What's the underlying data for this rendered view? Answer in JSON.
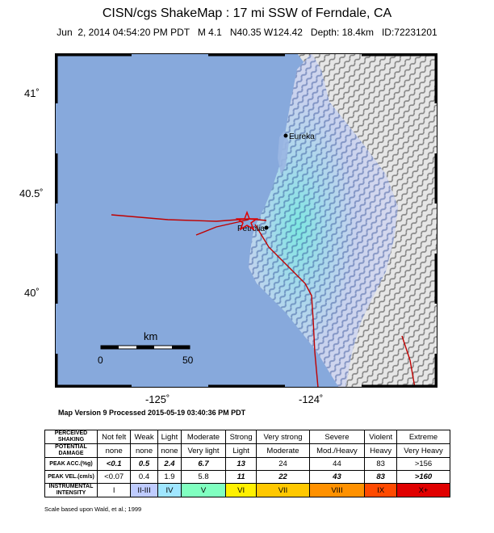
{
  "header": {
    "title": "CISN/cgs ShakeMap : 17 mi SSW of Ferndale, CA",
    "subtitle": "Jun  2, 2014 04:54:20 PM PDT   M 4.1   N40.35 W124.42   Depth: 18.4km   ID:72231201"
  },
  "map": {
    "lat_labels": [
      "41˚",
      "40.5˚",
      "40˚"
    ],
    "lon_labels": [
      "-125˚",
      "-124˚"
    ],
    "cities": [
      {
        "name": "Eureka"
      },
      {
        "name": "Petrolia"
      }
    ],
    "scale": {
      "unit": "km",
      "start": "0",
      "end": "50"
    },
    "colors": {
      "ocean": "#87a9dc",
      "epicenter": "#e00000",
      "faults": "#c00000"
    }
  },
  "version_text": "Map Version 9 Processed 2015-05-19 03:40:36 PM PDT",
  "legend": {
    "row_labels": {
      "shaking": "PERCEIVED SHAKING",
      "damage": "POTENTIAL DAMAGE",
      "acc": "PEAK ACC.(%g)",
      "vel": "PEAK VEL.(cm/s)",
      "intensity": "INSTRUMENTAL INTENSITY"
    },
    "shaking": [
      "Not felt",
      "Weak",
      "Light",
      "Moderate",
      "Strong",
      "Very strong",
      "Severe",
      "Violent",
      "Extreme"
    ],
    "damage": [
      "none",
      "none",
      "none",
      "Very light",
      "Light",
      "Moderate",
      "Mod./Heavy",
      "Heavy",
      "Very Heavy"
    ],
    "acc": [
      "<0.1",
      "0.5",
      "2.4",
      "6.7",
      "13",
      "24",
      "44",
      "83",
      ">156"
    ],
    "vel": [
      "<0.07",
      "0.4",
      "1.9",
      "5.8",
      "11",
      "22",
      "43",
      "83",
      ">160"
    ],
    "intensity": [
      "I",
      "II-III",
      "IV",
      "V",
      "VI",
      "VII",
      "VIII",
      "IX",
      "X+"
    ],
    "intensity_colors": [
      "#ffffff",
      "#bfccff",
      "#a0e6ff",
      "#80ffc0",
      "#fff000",
      "#ffc800",
      "#ff9100",
      "#ff4a00",
      "#e00000"
    ]
  },
  "scale_note": "Scale based upon Wald, et al.; 1999"
}
